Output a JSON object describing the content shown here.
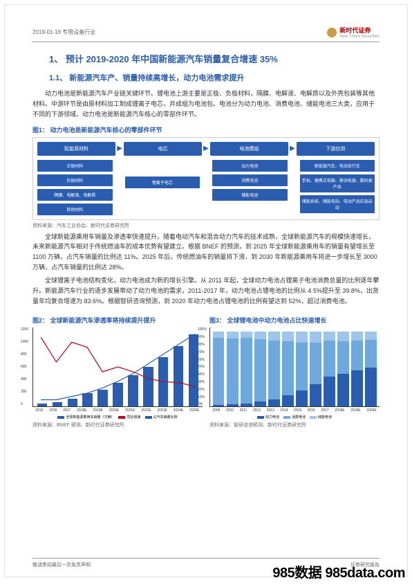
{
  "header": {
    "left": "2019-01-18 专用设备行业",
    "brand": "新时代证券",
    "brand_en": "New Times Securities"
  },
  "h1": "1、 预计 2019-2020 年中国新能源汽车销量复合增速 35%",
  "h2": "1.1、 新能源汽车产、销量持续高增长，动力电池需求提升",
  "p1": "动力电池是新能源汽车产业链关键环节。锂电池上游主要是正极、负极材料，隔膜、电解液、电解质以及外壳包装等其他材料。中游环节是由原材料加工制成锂离子电芯，并成组为电池包。电池分为动力电池、消费电池、储能电池三大类，应用于不同的下游领域。动力电池是新能源汽车核心的零部件环节。",
  "fig1": {
    "label": "图1：  动力电池是新能源汽车核心的零部件环节",
    "top": [
      "配套原材料",
      "电芯",
      "电池模组",
      "下游应用"
    ],
    "col1": [
      "正极材料",
      "负极材料",
      "隔膜、电解液、电解质",
      "其他材料"
    ],
    "col2": [
      "锂离子电芯"
    ],
    "col3": [
      "动力电池",
      "消费电池",
      "储能电池"
    ],
    "col4": [
      "新能源汽车、电动自行车",
      "手机、便携式电脑、移动电源、数码类产品",
      "储能系统、储能电站、电动产品应急启动"
    ],
    "src": "资料来源：汽车工业协会、新时代证券研究所",
    "chip_color": "#2a5db0"
  },
  "p2": "全球新能源乘用车销量及渗透率快速提升。随着电动汽车和混合动力汽车的技术成熟，全球新能源汽车的规模快速增长，未来新能源汽车相对于传统燃油车的成本优势有望建立。根据 BNEF 的预测，到 2025 年全球新能源乘用车的销量有望增长至 1100 万辆，占汽车销量的比例达 11%。2025 年后，传统燃油车的销量将下滑，到 2030 年新能源乘用车将进一步增长至 3000 万辆，占汽车销量的比例达 28%。",
  "p3": "全球锂离子电池结构变化，动力电池成为新的增长引擎。从 2011 年起，全球动力电池占锂离子电池消费总量的比例逐年攀升。新能源汽车行业的逐步发展带动了动力电池的需求，2011-2017 年，动力电池占锂电池的比例从 4.5%提升至 39.8%，出货量年均复合增速为 83.6%。根据智研咨询预测，到 2020 年动力电池占锂电池的比例有望达到 52%，超过消费电池。",
  "fig2": {
    "label": "图2：  全球新能源汽车渗透率将持续提升提升",
    "years": [
      "2015",
      "2016",
      "2017",
      "2018E",
      "2019E",
      "2020E",
      "2021E",
      "2022E",
      "2023E",
      "2024E",
      "2025E"
    ],
    "bars": [
      50,
      70,
      120,
      200,
      260,
      360,
      480,
      600,
      750,
      920,
      1100
    ],
    "ymax": 1200,
    "ystep": 200,
    "yoy": [
      70,
      45,
      65,
      60,
      35,
      40,
      35,
      28,
      25,
      24,
      20
    ],
    "pen": [
      1,
      1,
      1.5,
      2,
      2.8,
      3.8,
      5,
      6.5,
      8,
      9.5,
      11
    ],
    "bar_color": "#2a5db0",
    "line1_color": "#c00020",
    "line2_color": "#2a5db0",
    "legend": [
      "全球新能源乘用车销量（万辆）",
      "同比增速",
      "占汽车销量比例"
    ],
    "src": "资料来源：BNEF 预测、新时代证券研究所"
  },
  "fig3": {
    "label": "图3：  全球锂电池中动力电池占比快速增长",
    "years": [
      "2009",
      "2010",
      "2011",
      "2012",
      "2013",
      "2014",
      "2015",
      "2016",
      "2017",
      "2018E",
      "2019E",
      "2020E"
    ],
    "power": [
      2,
      3,
      4.5,
      7,
      10,
      15,
      22,
      30,
      39.8,
      44,
      48,
      52
    ],
    "consume": [
      90,
      88,
      87,
      83,
      78,
      72,
      63,
      55,
      48,
      43,
      40,
      37
    ],
    "storage": [
      8,
      9,
      8.5,
      10,
      12,
      13,
      15,
      15,
      12.2,
      13,
      12,
      11
    ],
    "colors": {
      "power": "#2a5db0",
      "consume": "#6fa8dc",
      "storage": "#9fc5e8"
    },
    "legend": [
      "动力电池",
      "消费电池",
      "储能电池"
    ],
    "src": "资料来源：智研咨询预测、新时代证券研究所"
  },
  "footer": {
    "left": "敬请参阅最后一页免责声明",
    "right": "证券研究报告"
  },
  "watermark": "985数据 985data.com"
}
